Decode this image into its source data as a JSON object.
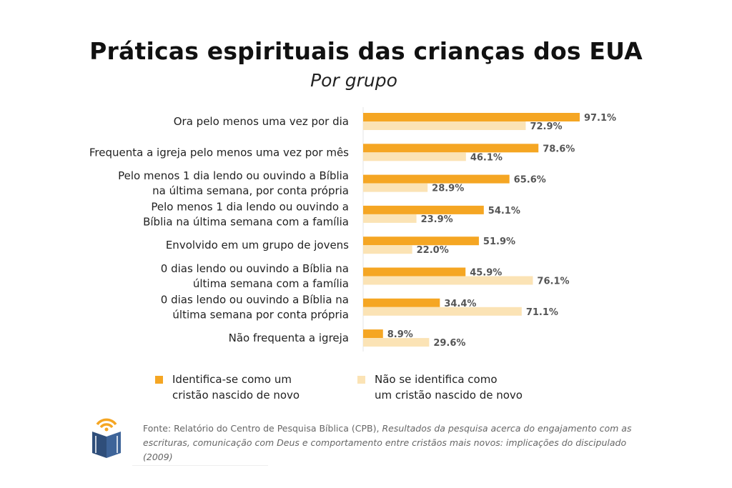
{
  "title": "Práticas espirituais das crianças dos EUA",
  "subtitle": "Por grupo",
  "chart_data": {
    "type": "bar",
    "orientation": "horizontal",
    "title": "Práticas espirituais das crianças dos EUA",
    "subtitle": "Por grupo",
    "categories": [
      [
        "Ora pelo menos uma vez por dia"
      ],
      [
        "Frequenta a igreja pelo menos uma vez por mês"
      ],
      [
        "Pelo menos 1 dia lendo ou ouvindo a Bíblia",
        "na última semana, por conta própria"
      ],
      [
        "Pelo menos 1 dia lendo ou ouvindo a",
        "Bíblia na última semana com a família"
      ],
      [
        "Envolvido em um grupo de jovens"
      ],
      [
        "0 dias lendo ou ouvindo a Bíblia na",
        "última semana com a família"
      ],
      [
        "0 dias lendo ou ouvindo a Bíblia na",
        "última semana por conta própria"
      ],
      [
        "Não frequenta a igreja"
      ]
    ],
    "series": [
      {
        "name": "Identifica-se como um cristão nascido de novo",
        "color": "#F5A623",
        "values": [
          97.1,
          78.6,
          65.6,
          54.1,
          51.9,
          45.9,
          34.4,
          8.9
        ],
        "labels": [
          "97.1%",
          "78.6%",
          "65.6%",
          "54.1%",
          "51.9%",
          "45.9%",
          "34.4%",
          "8.9%"
        ]
      },
      {
        "name": "Não se identifica como um cristão nascido de novo",
        "color": "#FBE3B5",
        "values": [
          72.9,
          46.1,
          28.9,
          23.9,
          22.0,
          76.1,
          71.1,
          29.6
        ],
        "labels": [
          "72.9%",
          "46.1%",
          "28.9%",
          "23.9%",
          "22.0%",
          "76.1%",
          "71.1%",
          "29.6%"
        ]
      }
    ],
    "xlim": [
      0,
      100
    ],
    "grid": false,
    "legend_position": "bottom"
  },
  "legend": [
    {
      "line1": "Identifica-se como um",
      "line2": "cristão nascido de novo",
      "color": "#F5A623"
    },
    {
      "line1": "Não se identifica como",
      "line2": "um cristão nascido de novo",
      "color": "#FBE3B5"
    }
  ],
  "source": {
    "prefix": "Fonte: Relatório do Centro de Pesquisa Bíblica (CPB), ",
    "italic": "Resultados da pesquisa acerca do engajamento com as escrituras, comunicação com Deus e comportamento entre cristãos mais novos: implicações do discipulado (2009)"
  },
  "logo": {
    "icon": "bible-broadcast-logo",
    "colors": [
      "#F5A623",
      "#2F4E7A"
    ]
  }
}
